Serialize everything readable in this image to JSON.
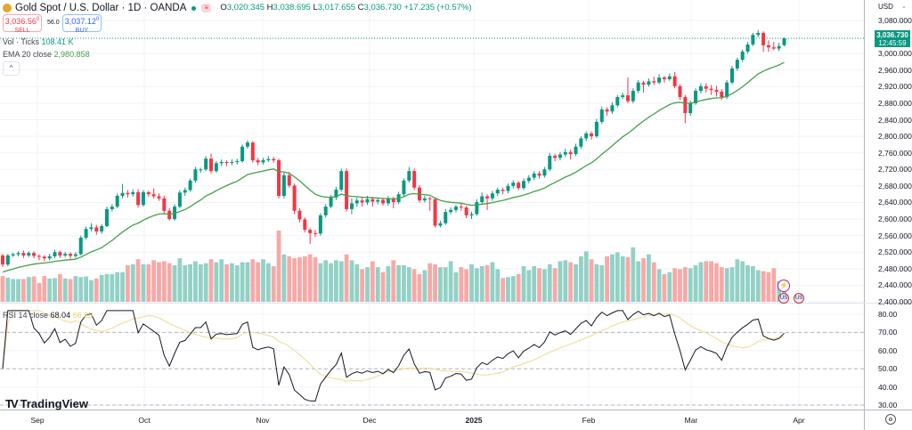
{
  "header": {
    "symbol_title": "Gold Spot / U.S. Dollar · 1D · OANDA",
    "ohlc": {
      "o_label": "O",
      "o": "3,020.345",
      "h_label": "H",
      "h": "3,038.695",
      "l_label": "L",
      "l": "3,017.655",
      "c_label": "C",
      "c": "3,036.730",
      "change": "+17.235 (+0.57%)"
    },
    "sell_price": "3,036.56",
    "sell_sup": "0",
    "sell_label": "SELL",
    "spread": "56.0",
    "buy_price": "3,037.12",
    "buy_sup": "0",
    "buy_label": "BUY",
    "market_status_icon": "market-closed-icon"
  },
  "indicators": {
    "vol_label": "Vol · Ticks",
    "vol_value": "108.41 K",
    "ema_label": "EMA 20 close",
    "ema_value": "2,980.858",
    "collapse_icon": "^",
    "rsi_label": "RSI 14 close",
    "rsi_value": "68.04",
    "rsi_ma_value": "66.26"
  },
  "price_axis": {
    "currency": "USD",
    "ticks": [
      "3,080.000",
      "3,000.000",
      "2,960.000",
      "2,920.000",
      "2,880.000",
      "2,840.000",
      "2,800.000",
      "2,760.000",
      "2,720.000",
      "2,680.000",
      "2,640.000",
      "2,600.000",
      "2,560.000",
      "2,520.000",
      "2,480.000",
      "2,440.000",
      "2,400.000"
    ],
    "last_price": "3,036.730",
    "countdown": "12:45:59"
  },
  "rsi_axis": {
    "ticks": [
      "80.00",
      "70.00",
      "60.00",
      "50.00",
      "40.00",
      "30.00"
    ]
  },
  "time_axis": {
    "labels": [
      "Sep",
      "Oct",
      "Nov",
      "Dec",
      "2025",
      "Feb",
      "Mar",
      "Apr"
    ]
  },
  "branding": {
    "logo_mark": "17",
    "logo_text": "TradingView"
  },
  "colors": {
    "up": "#089981",
    "down": "#f23645",
    "ema": "#43a047",
    "rsi": "#131722",
    "rsi_ma": "#f0e0a0",
    "vol_up": "#92d1c6",
    "vol_down": "#f7a9a7"
  },
  "chart_data": {
    "type": "candlestick",
    "title": "Gold Spot / U.S. Dollar · 1D · OANDA",
    "ylim": [
      2400,
      3080
    ],
    "rsi_ylim": [
      30,
      80
    ],
    "rsi_levels": [
      70,
      50,
      30
    ],
    "grid": true,
    "ohlc": [
      [
        2512,
        2516,
        2484,
        2490
      ],
      [
        2490,
        2516,
        2486,
        2512
      ],
      [
        2512,
        2519,
        2508,
        2515
      ],
      [
        2515,
        2522,
        2510,
        2518
      ],
      [
        2518,
        2524,
        2506,
        2512
      ],
      [
        2512,
        2522,
        2508,
        2518
      ],
      [
        2518,
        2522,
        2505,
        2511
      ],
      [
        2511,
        2515,
        2500,
        2509
      ],
      [
        2509,
        2513,
        2498,
        2505
      ],
      [
        2505,
        2516,
        2500,
        2510
      ],
      [
        2510,
        2526,
        2506,
        2520
      ],
      [
        2520,
        2524,
        2506,
        2512
      ],
      [
        2512,
        2521,
        2508,
        2516
      ],
      [
        2516,
        2520,
        2504,
        2511
      ],
      [
        2511,
        2520,
        2506,
        2515
      ],
      [
        2515,
        2560,
        2512,
        2555
      ],
      [
        2555,
        2582,
        2550,
        2576
      ],
      [
        2576,
        2590,
        2570,
        2580
      ],
      [
        2580,
        2586,
        2562,
        2570
      ],
      [
        2570,
        2588,
        2564,
        2583
      ],
      [
        2583,
        2630,
        2580,
        2624
      ],
      [
        2624,
        2636,
        2618,
        2630
      ],
      [
        2630,
        2662,
        2626,
        2656
      ],
      [
        2656,
        2685,
        2650,
        2663
      ],
      [
        2663,
        2670,
        2652,
        2660
      ],
      [
        2660,
        2672,
        2654,
        2665
      ],
      [
        2665,
        2672,
        2628,
        2634
      ],
      [
        2634,
        2670,
        2630,
        2665
      ],
      [
        2665,
        2668,
        2654,
        2660
      ],
      [
        2660,
        2674,
        2650,
        2655
      ],
      [
        2655,
        2662,
        2644,
        2650
      ],
      [
        2650,
        2656,
        2614,
        2620
      ],
      [
        2620,
        2626,
        2596,
        2600
      ],
      [
        2600,
        2636,
        2596,
        2630
      ],
      [
        2630,
        2670,
        2626,
        2664
      ],
      [
        2664,
        2676,
        2656,
        2670
      ],
      [
        2670,
        2698,
        2666,
        2693
      ],
      [
        2693,
        2726,
        2688,
        2720
      ],
      [
        2720,
        2724,
        2712,
        2720
      ],
      [
        2720,
        2752,
        2716,
        2746
      ],
      [
        2746,
        2758,
        2710,
        2716
      ],
      [
        2716,
        2740,
        2712,
        2735
      ],
      [
        2735,
        2744,
        2728,
        2738
      ],
      [
        2738,
        2742,
        2728,
        2736
      ],
      [
        2736,
        2744,
        2730,
        2738
      ],
      [
        2738,
        2746,
        2732,
        2740
      ],
      [
        2740,
        2780,
        2736,
        2775
      ],
      [
        2775,
        2790,
        2770,
        2785
      ],
      [
        2785,
        2788,
        2736,
        2742
      ],
      [
        2742,
        2748,
        2730,
        2737
      ],
      [
        2737,
        2748,
        2732,
        2742
      ],
      [
        2742,
        2752,
        2738,
        2745
      ],
      [
        2745,
        2750,
        2736,
        2742
      ],
      [
        2742,
        2746,
        2650,
        2656
      ],
      [
        2656,
        2712,
        2650,
        2706
      ],
      [
        2706,
        2714,
        2676,
        2681
      ],
      [
        2681,
        2686,
        2612,
        2620
      ],
      [
        2620,
        2626,
        2592,
        2599
      ],
      [
        2599,
        2604,
        2568,
        2574
      ],
      [
        2574,
        2578,
        2540,
        2566
      ],
      [
        2566,
        2574,
        2556,
        2565
      ],
      [
        2565,
        2614,
        2560,
        2609
      ],
      [
        2609,
        2636,
        2604,
        2630
      ],
      [
        2630,
        2658,
        2626,
        2652
      ],
      [
        2652,
        2678,
        2646,
        2671
      ],
      [
        2671,
        2722,
        2666,
        2716
      ],
      [
        2716,
        2722,
        2618,
        2624
      ],
      [
        2624,
        2650,
        2612,
        2638
      ],
      [
        2638,
        2652,
        2630,
        2645
      ],
      [
        2645,
        2652,
        2630,
        2640
      ],
      [
        2640,
        2656,
        2634,
        2648
      ],
      [
        2648,
        2654,
        2630,
        2642
      ],
      [
        2642,
        2652,
        2636,
        2646
      ],
      [
        2646,
        2652,
        2632,
        2638
      ],
      [
        2638,
        2656,
        2632,
        2650
      ],
      [
        2650,
        2654,
        2626,
        2641
      ],
      [
        2641,
        2666,
        2636,
        2660
      ],
      [
        2660,
        2698,
        2654,
        2693
      ],
      [
        2693,
        2726,
        2688,
        2716
      ],
      [
        2716,
        2722,
        2670,
        2676
      ],
      [
        2676,
        2682,
        2640,
        2645
      ],
      [
        2645,
        2656,
        2640,
        2650
      ],
      [
        2650,
        2654,
        2620,
        2648
      ],
      [
        2648,
        2652,
        2580,
        2584
      ],
      [
        2584,
        2596,
        2580,
        2590
      ],
      [
        2590,
        2624,
        2586,
        2617
      ],
      [
        2617,
        2628,
        2612,
        2622
      ],
      [
        2622,
        2634,
        2616,
        2630
      ],
      [
        2630,
        2640,
        2620,
        2628
      ],
      [
        2628,
        2632,
        2602,
        2609
      ],
      [
        2609,
        2618,
        2600,
        2612
      ],
      [
        2612,
        2648,
        2608,
        2641
      ],
      [
        2641,
        2664,
        2636,
        2655
      ],
      [
        2655,
        2660,
        2622,
        2650
      ],
      [
        2650,
        2668,
        2644,
        2662
      ],
      [
        2662,
        2676,
        2656,
        2671
      ],
      [
        2671,
        2676,
        2660,
        2668
      ],
      [
        2668,
        2686,
        2662,
        2680
      ],
      [
        2680,
        2694,
        2674,
        2688
      ],
      [
        2688,
        2692,
        2670,
        2675
      ],
      [
        2675,
        2698,
        2670,
        2692
      ],
      [
        2692,
        2706,
        2686,
        2700
      ],
      [
        2700,
        2716,
        2694,
        2710
      ],
      [
        2710,
        2716,
        2698,
        2705
      ],
      [
        2705,
        2726,
        2700,
        2720
      ],
      [
        2720,
        2760,
        2716,
        2753
      ],
      [
        2753,
        2758,
        2740,
        2748
      ],
      [
        2748,
        2762,
        2742,
        2756
      ],
      [
        2756,
        2770,
        2750,
        2762
      ],
      [
        2762,
        2768,
        2744,
        2757
      ],
      [
        2757,
        2782,
        2752,
        2775
      ],
      [
        2775,
        2800,
        2770,
        2795
      ],
      [
        2795,
        2812,
        2788,
        2807
      ],
      [
        2807,
        2812,
        2792,
        2800
      ],
      [
        2800,
        2842,
        2796,
        2835
      ],
      [
        2835,
        2872,
        2830,
        2865
      ],
      [
        2865,
        2870,
        2850,
        2860
      ],
      [
        2860,
        2882,
        2854,
        2875
      ],
      [
        2875,
        2900,
        2870,
        2895
      ],
      [
        2895,
        2906,
        2890,
        2899
      ],
      [
        2899,
        2942,
        2880,
        2885
      ],
      [
        2885,
        2916,
        2880,
        2910
      ],
      [
        2910,
        2936,
        2904,
        2930
      ],
      [
        2930,
        2934,
        2906,
        2925
      ],
      [
        2925,
        2940,
        2920,
        2933
      ],
      [
        2933,
        2944,
        2924,
        2930
      ],
      [
        2930,
        2950,
        2926,
        2942
      ],
      [
        2942,
        2946,
        2930,
        2938
      ],
      [
        2938,
        2952,
        2934,
        2945
      ],
      [
        2945,
        2955,
        2916,
        2921
      ],
      [
        2921,
        2926,
        2888,
        2895
      ],
      [
        2895,
        2900,
        2832,
        2856
      ],
      [
        2856,
        2886,
        2850,
        2880
      ],
      [
        2880,
        2916,
        2876,
        2910
      ],
      [
        2910,
        2928,
        2904,
        2921
      ],
      [
        2921,
        2928,
        2906,
        2915
      ],
      [
        2915,
        2924,
        2900,
        2912
      ],
      [
        2912,
        2922,
        2896,
        2908
      ],
      [
        2908,
        2914,
        2888,
        2895
      ],
      [
        2895,
        2936,
        2890,
        2930
      ],
      [
        2930,
        2970,
        2926,
        2964
      ],
      [
        2964,
        2990,
        2958,
        2985
      ],
      [
        2985,
        3010,
        2980,
        3005
      ],
      [
        3005,
        3028,
        3000,
        3022
      ],
      [
        3022,
        3050,
        3018,
        3045
      ],
      [
        3045,
        3057,
        3040,
        3050
      ],
      [
        3050,
        3054,
        3004,
        3020
      ],
      [
        3020,
        3032,
        3004,
        3015
      ],
      [
        3015,
        3028,
        3008,
        3012
      ],
      [
        3012,
        3026,
        3006,
        3018
      ],
      [
        3020.345,
        3038.695,
        3017.655,
        3036.73
      ]
    ],
    "volume_k": [
      130,
      122,
      115,
      115,
      115,
      125,
      128,
      95,
      130,
      118,
      120,
      140,
      118,
      115,
      130,
      125,
      128,
      110,
      118,
      135,
      140,
      140,
      150,
      150,
      185,
      190,
      215,
      190,
      190,
      210,
      200,
      205,
      195,
      185,
      220,
      185,
      190,
      205,
      190,
      195,
      215,
      200,
      215,
      190,
      195,
      185,
      200,
      200,
      215,
      200,
      215,
      195,
      180,
      360,
      240,
      230,
      220,
      225,
      230,
      240,
      225,
      195,
      210,
      195,
      210,
      205,
      240,
      210,
      190,
      165,
      175,
      205,
      175,
      150,
      180,
      210,
      185,
      185,
      175,
      165,
      140,
      160,
      195,
      190,
      175,
      175,
      205,
      150,
      175,
      165,
      190,
      170,
      180,
      185,
      200,
      165,
      120,
      125,
      130,
      140,
      180,
      160,
      180,
      170,
      165,
      190,
      170,
      205,
      210,
      200,
      190,
      230,
      255,
      215,
      190,
      185,
      230,
      240,
      250,
      230,
      225,
      275,
      205,
      220,
      240,
      200,
      165,
      140,
      150,
      170,
      165,
      175,
      170,
      185,
      200,
      205,
      205,
      195,
      175,
      170,
      175,
      215,
      205,
      185,
      180,
      160,
      155,
      150,
      170,
      105,
      108.41
    ]
  }
}
